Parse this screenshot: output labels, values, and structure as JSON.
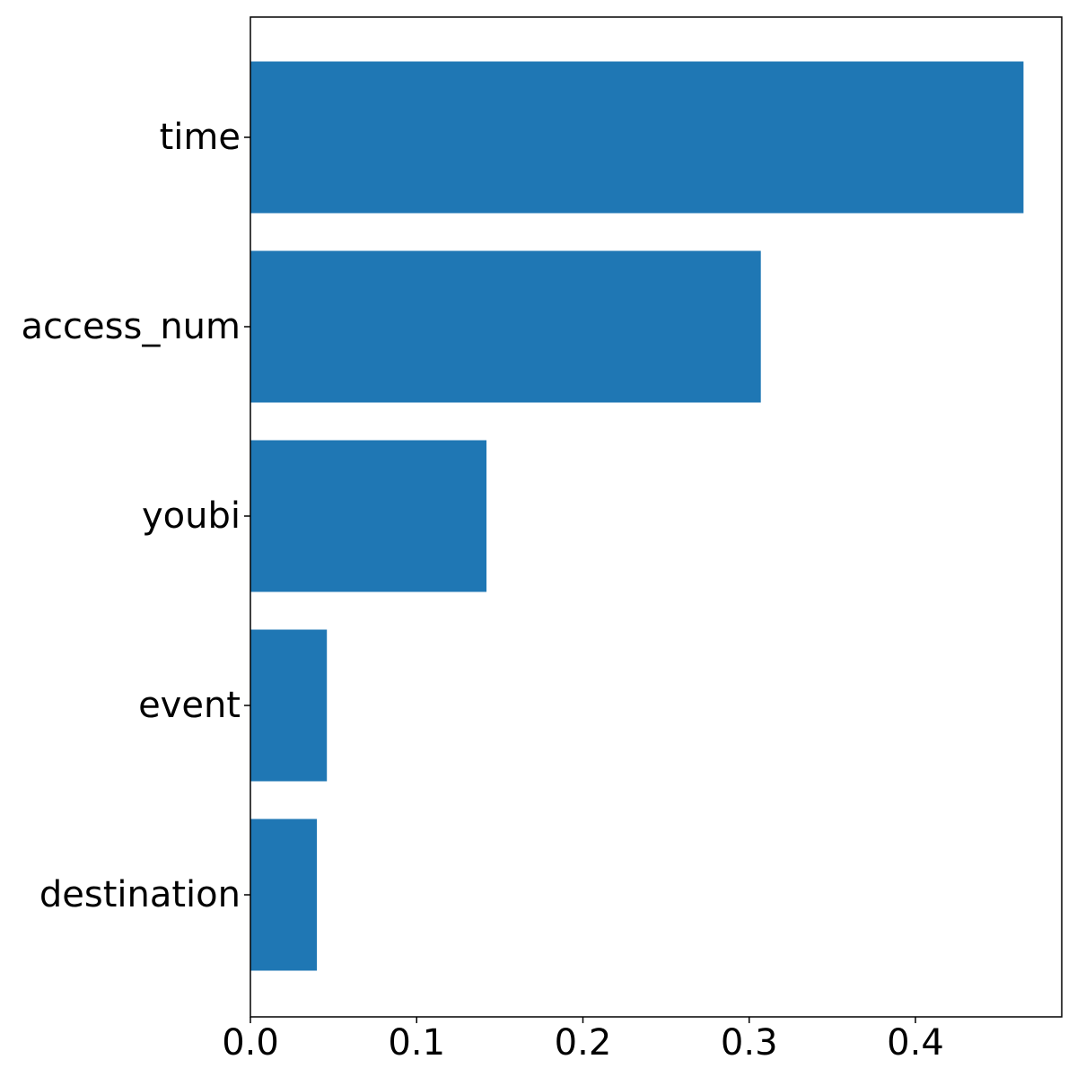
{
  "chart_data": {
    "type": "bar",
    "orientation": "horizontal",
    "title": "",
    "xlabel": "",
    "ylabel": "",
    "categories": [
      "time",
      "access_num",
      "youbi",
      "event",
      "destination"
    ],
    "values": [
      0.465,
      0.307,
      0.142,
      0.046,
      0.04
    ],
    "xlim": [
      0,
      0.488
    ],
    "xticks": [
      "0.0",
      "0.1",
      "0.2",
      "0.3",
      "0.4"
    ],
    "grid": false,
    "legend": "none",
    "colors": {
      "bar": "#1f77b4",
      "axis": "#000000",
      "background": "#ffffff"
    }
  }
}
